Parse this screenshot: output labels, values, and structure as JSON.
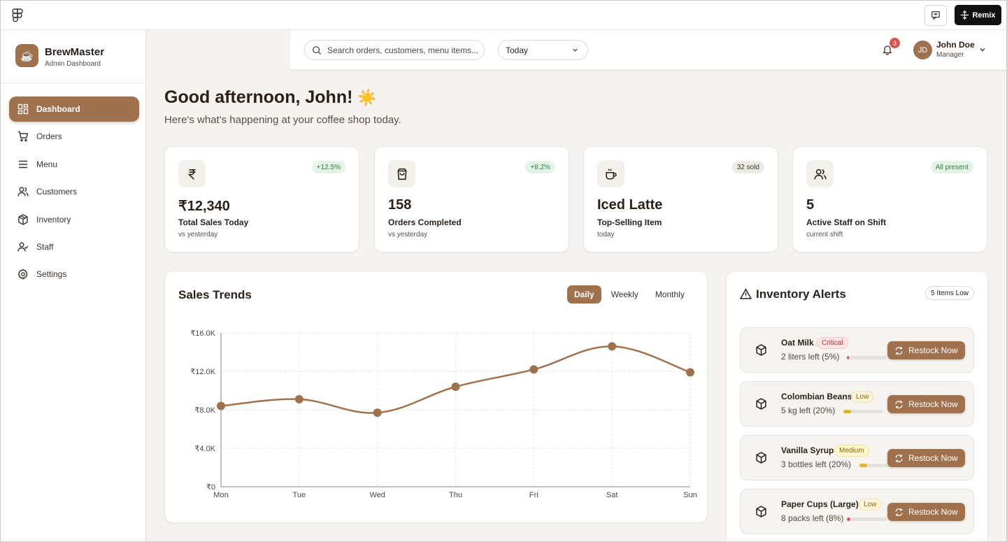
{
  "topbar": {
    "remix_label": "Remix",
    "icons": {
      "app": "figma-logo-icon",
      "chat": "comment-icon",
      "remix": "remix-icon"
    }
  },
  "brand": {
    "name": "BrewMaster",
    "subtitle": "Admin Dashboard",
    "icon": "coffee-cup-icon"
  },
  "sidebar": {
    "items": [
      {
        "label": "Dashboard",
        "icon": "dashboard-icon",
        "active": true
      },
      {
        "label": "Orders",
        "icon": "cart-icon",
        "active": false
      },
      {
        "label": "Menu",
        "icon": "menu-lines-icon",
        "active": false
      },
      {
        "label": "Customers",
        "icon": "users-icon",
        "active": false
      },
      {
        "label": "Inventory",
        "icon": "package-icon",
        "active": false
      },
      {
        "label": "Staff",
        "icon": "user-check-icon",
        "active": false
      },
      {
        "label": "Settings",
        "icon": "gear-icon",
        "active": false
      }
    ]
  },
  "header": {
    "search_placeholder": "Search orders, customers, menu items...",
    "period": "Today",
    "notifications": "3",
    "user": {
      "initials": "JD",
      "name": "John Doe",
      "role": "Manager"
    }
  },
  "greeting": {
    "title": "Good afternoon, John!",
    "emoji": "☀️",
    "subtitle": "Here's what's happening at your coffee shop today."
  },
  "stats": [
    {
      "value": "₹12,340",
      "label": "Total Sales Today",
      "sub": "vs yesterday",
      "pill": "+12.5%",
      "pill_style": "green",
      "icon": "rupee-icon"
    },
    {
      "value": "158",
      "label": "Orders Completed",
      "sub": "vs yesterday",
      "pill": "+8.2%",
      "pill_style": "green",
      "icon": "shopping-bag-icon"
    },
    {
      "value": "Iced Latte",
      "label": "Top-Selling Item",
      "sub": "today",
      "pill": "32 sold",
      "pill_style": "gray",
      "icon": "coffee-icon"
    },
    {
      "value": "5",
      "label": "Active Staff on Shift",
      "sub": "current shift",
      "pill": "All present",
      "pill_style": "green",
      "icon": "users-icon"
    }
  ],
  "sales_trends": {
    "title": "Sales Trends",
    "tabs": [
      {
        "label": "Daily",
        "active": true
      },
      {
        "label": "Weekly",
        "active": false
      },
      {
        "label": "Monthly",
        "active": false
      }
    ]
  },
  "chart_data": {
    "type": "line",
    "title": "Sales Trends",
    "xlabel": "",
    "ylabel": "",
    "categories": [
      "Mon",
      "Tue",
      "Wed",
      "Thu",
      "Fri",
      "Sat",
      "Sun"
    ],
    "series": [
      {
        "values": [
          8400,
          9100,
          7700,
          10400,
          12200,
          14600,
          11900
        ]
      }
    ],
    "ylim": [
      0,
      16000
    ],
    "yticks": [
      0,
      4000,
      8000,
      12000,
      16000
    ],
    "ytick_labels": [
      "₹0",
      "₹4.0K",
      "₹8.0K",
      "₹12.0K",
      "₹16.0K"
    ],
    "grid": true,
    "color": "#a0714d"
  },
  "inventory": {
    "title": "Inventory Alerts",
    "count_label": "5 Items Low",
    "restock_label": "Restock Now",
    "items": [
      {
        "name": "Oat Milk",
        "level": "Critical",
        "level_style": "critical",
        "left": "2 liters left (5%)",
        "fraction": 0.05,
        "bar_color": "#d9534f"
      },
      {
        "name": "Colombian Beans",
        "level": "Low",
        "level_style": "low",
        "left": "5 kg left (20%)",
        "fraction": 0.2,
        "bar_color": "#e6b422"
      },
      {
        "name": "Vanilla Syrup",
        "level": "Medium",
        "level_style": "medium",
        "left": "3 bottles left (20%)",
        "fraction": 0.2,
        "bar_color": "#e6b422"
      },
      {
        "name": "Paper Cups (Large)",
        "level": "Low",
        "level_style": "low",
        "left": "8 packs left (8%)",
        "fraction": 0.08,
        "bar_color": "#d9534f"
      }
    ]
  }
}
